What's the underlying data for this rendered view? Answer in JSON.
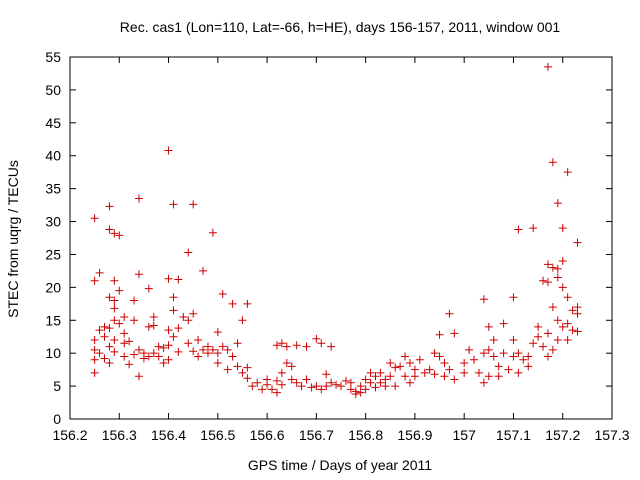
{
  "chart_data": {
    "type": "scatter",
    "title": "Rec. cas1 (Lon=110, Lat=-66, h=HE), days 156-157, 2011, window 001",
    "xlabel": "GPS time / Days of year 2011",
    "ylabel": "STEC from uqrg / TECUs",
    "xlim": [
      156.2,
      157.3
    ],
    "ylim": [
      0,
      55
    ],
    "xticks": [
      "156.2",
      "156.3",
      "156.4",
      "156.5",
      "156.6",
      "156.7",
      "156.8",
      "156.9",
      "157",
      "157.1",
      "157.2",
      "157.3"
    ],
    "yticks": [
      "0",
      "5",
      "10",
      "15",
      "20",
      "25",
      "30",
      "35",
      "40",
      "45",
      "50",
      "55"
    ],
    "grid": false,
    "legend": "none",
    "marker": "plus",
    "color": "#cc0000",
    "points": [
      [
        156.25,
        30.5
      ],
      [
        156.25,
        21.0
      ],
      [
        156.26,
        22.2
      ],
      [
        156.25,
        12.0
      ],
      [
        156.25,
        10.5
      ],
      [
        156.25,
        9.0
      ],
      [
        156.25,
        7.0
      ],
      [
        156.26,
        13.5
      ],
      [
        156.26,
        10.0
      ],
      [
        156.27,
        14.0
      ],
      [
        156.27,
        12.5
      ],
      [
        156.27,
        9.2
      ],
      [
        156.28,
        32.3
      ],
      [
        156.28,
        28.8
      ],
      [
        156.28,
        18.5
      ],
      [
        156.28,
        13.8
      ],
      [
        156.28,
        11.0
      ],
      [
        156.28,
        8.5
      ],
      [
        156.29,
        28.2
      ],
      [
        156.29,
        21.0
      ],
      [
        156.29,
        18.0
      ],
      [
        156.29,
        16.8
      ],
      [
        156.29,
        15.0
      ],
      [
        156.29,
        12.0
      ],
      [
        156.29,
        10.2
      ],
      [
        156.3,
        27.9
      ],
      [
        156.3,
        19.5
      ],
      [
        156.3,
        14.5
      ],
      [
        156.31,
        15.5
      ],
      [
        156.31,
        13.0
      ],
      [
        156.31,
        11.5
      ],
      [
        156.31,
        9.5
      ],
      [
        156.32,
        11.8
      ],
      [
        156.32,
        8.3
      ],
      [
        156.33,
        18.0
      ],
      [
        156.33,
        15.0
      ],
      [
        156.33,
        9.8
      ],
      [
        156.34,
        33.5
      ],
      [
        156.34,
        22.0
      ],
      [
        156.34,
        10.5
      ],
      [
        156.34,
        6.5
      ],
      [
        156.35,
        10.0
      ],
      [
        156.35,
        9.2
      ],
      [
        156.36,
        19.8
      ],
      [
        156.36,
        14.0
      ],
      [
        156.36,
        9.5
      ],
      [
        156.37,
        15.5
      ],
      [
        156.37,
        14.2
      ],
      [
        156.37,
        10.0
      ],
      [
        156.38,
        11.0
      ],
      [
        156.38,
        9.5
      ],
      [
        156.39,
        8.5
      ],
      [
        156.39,
        10.8
      ],
      [
        156.4,
        40.8
      ],
      [
        156.4,
        21.3
      ],
      [
        156.4,
        13.5
      ],
      [
        156.4,
        11.2
      ],
      [
        156.4,
        9.0
      ],
      [
        156.41,
        32.6
      ],
      [
        156.41,
        18.5
      ],
      [
        156.41,
        16.5
      ],
      [
        156.41,
        12.5
      ],
      [
        156.42,
        21.2
      ],
      [
        156.42,
        13.8
      ],
      [
        156.42,
        10.2
      ],
      [
        156.43,
        15.5
      ],
      [
        156.44,
        25.3
      ],
      [
        156.44,
        15.0
      ],
      [
        156.44,
        11.5
      ],
      [
        156.45,
        32.6
      ],
      [
        156.45,
        16.0
      ],
      [
        156.45,
        10.3
      ],
      [
        156.46,
        9.5
      ],
      [
        156.46,
        12.0
      ],
      [
        156.47,
        22.5
      ],
      [
        156.47,
        10.5
      ],
      [
        156.48,
        11.0
      ],
      [
        156.48,
        10.0
      ],
      [
        156.49,
        28.3
      ],
      [
        156.49,
        10.5
      ],
      [
        156.5,
        13.2
      ],
      [
        156.5,
        10.0
      ],
      [
        156.5,
        8.5
      ],
      [
        156.51,
        19.0
      ],
      [
        156.51,
        11.0
      ],
      [
        156.52,
        7.5
      ],
      [
        156.52,
        10.5
      ],
      [
        156.53,
        17.5
      ],
      [
        156.53,
        9.5
      ],
      [
        156.54,
        11.5
      ],
      [
        156.54,
        8.0
      ],
      [
        156.55,
        15.0
      ],
      [
        156.55,
        7.0
      ],
      [
        156.56,
        17.5
      ],
      [
        156.56,
        7.8
      ],
      [
        156.56,
        6.2
      ],
      [
        156.57,
        5.0
      ],
      [
        156.58,
        5.5
      ],
      [
        156.59,
        4.5
      ],
      [
        156.6,
        6.0
      ],
      [
        156.6,
        5.2
      ],
      [
        156.61,
        4.5
      ],
      [
        156.62,
        11.2
      ],
      [
        156.62,
        5.8
      ],
      [
        156.62,
        4.0
      ],
      [
        156.63,
        11.5
      ],
      [
        156.63,
        7.0
      ],
      [
        156.63,
        5.2
      ],
      [
        156.64,
        8.5
      ],
      [
        156.64,
        11.0
      ],
      [
        156.65,
        8.0
      ],
      [
        156.65,
        6.0
      ],
      [
        156.66,
        11.2
      ],
      [
        156.66,
        5.5
      ],
      [
        156.67,
        5.0
      ],
      [
        156.68,
        11.0
      ],
      [
        156.68,
        6.0
      ],
      [
        156.69,
        4.8
      ],
      [
        156.7,
        5.0
      ],
      [
        156.7,
        12.2
      ],
      [
        156.71,
        4.5
      ],
      [
        156.71,
        11.5
      ],
      [
        156.72,
        6.8
      ],
      [
        156.72,
        5.0
      ],
      [
        156.73,
        5.5
      ],
      [
        156.73,
        11.0
      ],
      [
        156.74,
        5.2
      ],
      [
        156.75,
        5.0
      ],
      [
        156.76,
        5.8
      ],
      [
        156.77,
        4.5
      ],
      [
        156.77,
        5.5
      ],
      [
        156.78,
        4.2
      ],
      [
        156.78,
        3.8
      ],
      [
        156.79,
        5.0
      ],
      [
        156.79,
        4.0
      ],
      [
        156.8,
        6.0
      ],
      [
        156.8,
        4.5
      ],
      [
        156.81,
        7.0
      ],
      [
        156.81,
        5.5
      ],
      [
        156.82,
        6.5
      ],
      [
        156.82,
        4.8
      ],
      [
        156.83,
        7.0
      ],
      [
        156.83,
        5.5
      ],
      [
        156.84,
        6.0
      ],
      [
        156.84,
        5.0
      ],
      [
        156.85,
        8.5
      ],
      [
        156.85,
        6.5
      ],
      [
        156.86,
        7.8
      ],
      [
        156.86,
        5.0
      ],
      [
        156.87,
        8.0
      ],
      [
        156.88,
        9.5
      ],
      [
        156.88,
        6.5
      ],
      [
        156.89,
        8.5
      ],
      [
        156.89,
        5.5
      ],
      [
        156.9,
        7.5
      ],
      [
        156.9,
        6.5
      ],
      [
        156.91,
        9.0
      ],
      [
        156.92,
        7.0
      ],
      [
        156.93,
        7.5
      ],
      [
        156.94,
        10.0
      ],
      [
        156.94,
        6.8
      ],
      [
        156.95,
        12.8
      ],
      [
        156.95,
        9.5
      ],
      [
        156.96,
        8.5
      ],
      [
        156.96,
        6.5
      ],
      [
        156.97,
        16.0
      ],
      [
        156.97,
        7.5
      ],
      [
        156.98,
        13.0
      ],
      [
        156.98,
        6.0
      ],
      [
        157.0,
        8.5
      ],
      [
        157.0,
        7.0
      ],
      [
        157.01,
        10.5
      ],
      [
        157.02,
        9.0
      ],
      [
        157.03,
        7.0
      ],
      [
        157.04,
        18.2
      ],
      [
        157.04,
        10.0
      ],
      [
        157.04,
        5.5
      ],
      [
        157.05,
        14.0
      ],
      [
        157.05,
        10.5
      ],
      [
        157.05,
        6.5
      ],
      [
        157.06,
        12.0
      ],
      [
        157.06,
        9.5
      ],
      [
        157.07,
        8.0
      ],
      [
        157.07,
        6.5
      ],
      [
        157.08,
        14.5
      ],
      [
        157.08,
        10.0
      ],
      [
        157.09,
        7.5
      ],
      [
        157.1,
        18.5
      ],
      [
        157.1,
        12.0
      ],
      [
        157.1,
        9.5
      ],
      [
        157.11,
        28.8
      ],
      [
        157.11,
        10.0
      ],
      [
        157.11,
        7.0
      ],
      [
        157.12,
        9.0
      ],
      [
        157.13,
        9.5
      ],
      [
        157.13,
        8.0
      ],
      [
        157.14,
        29.0
      ],
      [
        157.14,
        11.5
      ],
      [
        157.15,
        14.0
      ],
      [
        157.15,
        12.5
      ],
      [
        157.16,
        21.0
      ],
      [
        157.16,
        11.0
      ],
      [
        157.17,
        53.5
      ],
      [
        157.17,
        23.5
      ],
      [
        157.17,
        20.8
      ],
      [
        157.17,
        13.0
      ],
      [
        157.17,
        9.5
      ],
      [
        157.18,
        39.0
      ],
      [
        157.18,
        23.0
      ],
      [
        157.18,
        17.0
      ],
      [
        157.18,
        10.5
      ],
      [
        157.19,
        32.8
      ],
      [
        157.19,
        22.8
      ],
      [
        157.19,
        21.5
      ],
      [
        157.19,
        15.0
      ],
      [
        157.19,
        12.0
      ],
      [
        157.2,
        29.0
      ],
      [
        157.2,
        24.0
      ],
      [
        157.2,
        20.0
      ],
      [
        157.2,
        14.0
      ],
      [
        157.21,
        37.5
      ],
      [
        157.21,
        18.5
      ],
      [
        157.21,
        14.5
      ],
      [
        157.21,
        12.0
      ],
      [
        157.22,
        16.5
      ],
      [
        157.22,
        13.5
      ],
      [
        157.23,
        26.8
      ],
      [
        157.23,
        17.0
      ],
      [
        157.23,
        16.0
      ],
      [
        157.23,
        13.3
      ]
    ]
  }
}
